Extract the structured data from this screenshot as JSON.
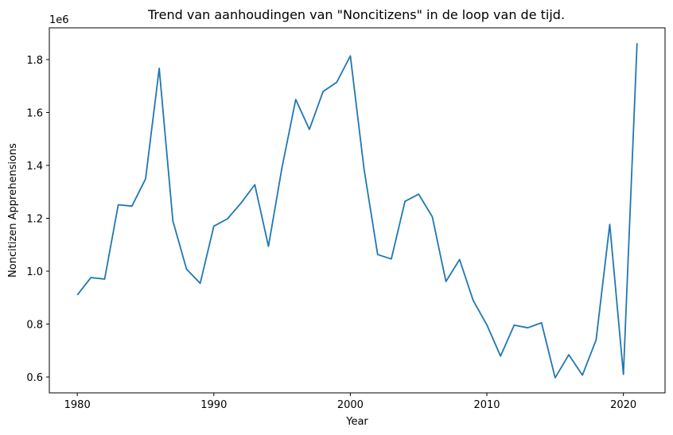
{
  "chart_data": {
    "type": "line",
    "title": "Trend van aanhoudingen van \"Noncitizens\" in de loop van de tijd.",
    "xlabel": "Year",
    "ylabel": "Noncitizen Apprehensions",
    "y_offset_label": "1e6",
    "xlim": [
      1977.95,
      2023.05
    ],
    "ylim": [
      540000,
      1920000
    ],
    "x_ticks": [
      1980,
      1990,
      2000,
      2010,
      2020
    ],
    "y_ticks": [
      600000,
      800000,
      1000000,
      1200000,
      1400000,
      1600000,
      1800000
    ],
    "y_tick_labels": [
      "0.6",
      "0.8",
      "1.0",
      "1.2",
      "1.4",
      "1.6",
      "1.8"
    ],
    "grid": false,
    "series": [
      {
        "color": "#1f77b4",
        "x": [
          1980,
          1981,
          1982,
          1983,
          1984,
          1985,
          1986,
          1987,
          1988,
          1989,
          1990,
          1991,
          1992,
          1993,
          1994,
          1995,
          1996,
          1997,
          1998,
          1999,
          2000,
          2001,
          2002,
          2003,
          2004,
          2005,
          2006,
          2007,
          2008,
          2009,
          2010,
          2011,
          2012,
          2013,
          2014,
          2015,
          2016,
          2017,
          2018,
          2019,
          2020,
          2021
        ],
        "y": [
          910000,
          976000,
          970000,
          1251000,
          1246000,
          1349000,
          1767000,
          1190000,
          1008000,
          954000,
          1170000,
          1198000,
          1258000,
          1327000,
          1094000,
          1394000,
          1649000,
          1536000,
          1679000,
          1714000,
          1814000,
          1387000,
          1063000,
          1046000,
          1264000,
          1291000,
          1206000,
          961000,
          1044000,
          889000,
          797000,
          679000,
          796000,
          786000,
          805000,
          597000,
          684000,
          607000,
          740000,
          1177000,
          610000,
          1862000
        ]
      }
    ]
  }
}
